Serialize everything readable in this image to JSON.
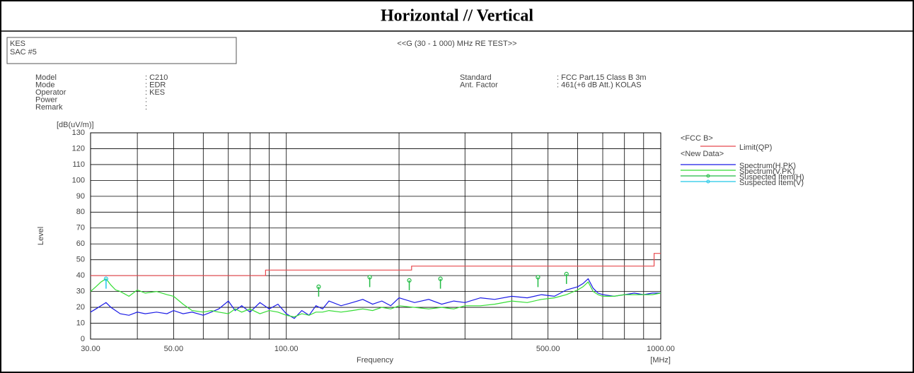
{
  "header": {
    "title": "Horizontal // Vertical"
  },
  "info": {
    "site": [
      "KES",
      "SAC #5"
    ],
    "test_title": "<<G (30 - 1 000) MHz RE TEST>>",
    "fields_left": [
      {
        "label": "Model",
        "value": ": C210"
      },
      {
        "label": "Mode",
        "value": ": EDR"
      },
      {
        "label": "Operator",
        "value": ": KES"
      },
      {
        "label": "Power",
        "value": ":"
      },
      {
        "label": "Remark",
        "value": ":"
      }
    ],
    "fields_right": [
      {
        "label": "Standard",
        "value": ": FCC Part.15 Class B 3m"
      },
      {
        "label": "Ant. Factor",
        "value": ": 461(+6 dB Att.) KOLAS"
      }
    ]
  },
  "chart_data": {
    "type": "line",
    "xlabel": "Frequency",
    "xunit": "[MHz]",
    "ylabel": "Level",
    "yunit": "[dB(uV/m)]",
    "xlog": true,
    "xlim": [
      30,
      1000
    ],
    "ylim": [
      0,
      130
    ],
    "xticks": [
      {
        "value": 30,
        "label": "30.00"
      },
      {
        "value": 50,
        "label": "50.00"
      },
      {
        "value": 100,
        "label": "100.00"
      },
      {
        "value": 500,
        "label": "500.00"
      },
      {
        "value": 1000,
        "label": "1000.00"
      }
    ],
    "xgrid": [
      30,
      40,
      50,
      60,
      70,
      80,
      90,
      100,
      200,
      300,
      400,
      500,
      600,
      700,
      800,
      900,
      1000
    ],
    "yticks": [
      0,
      10,
      20,
      30,
      40,
      50,
      60,
      70,
      80,
      90,
      100,
      110,
      120,
      130
    ],
    "grid": true,
    "legend_headings": [
      "<FCC B>",
      "<New Data>"
    ],
    "series": [
      {
        "name": "Limit(QP)",
        "color": "#e8494f",
        "x": [
          30,
          88,
          88,
          216,
          216,
          960,
          960,
          1000
        ],
        "values": [
          40,
          40,
          43.5,
          43.5,
          46,
          46,
          54,
          54
        ]
      },
      {
        "name": "Spectrum(H.PK)",
        "color": "#1a1ae6",
        "x": [
          30,
          31,
          32,
          33,
          34,
          35,
          36,
          38,
          40,
          42,
          45,
          48,
          50,
          53,
          56,
          60,
          63,
          66,
          70,
          73,
          76,
          80,
          85,
          90,
          95,
          100,
          105,
          110,
          115,
          120,
          125,
          130,
          140,
          150,
          160,
          170,
          180,
          190,
          200,
          220,
          240,
          260,
          280,
          300,
          330,
          360,
          400,
          440,
          480,
          520,
          560,
          600,
          620,
          640,
          660,
          680,
          700,
          750,
          800,
          850,
          900,
          950,
          1000
        ],
        "values": [
          17,
          19,
          21,
          23,
          20,
          18,
          16,
          15,
          17,
          16,
          17,
          16,
          18,
          16,
          17,
          15,
          17,
          19,
          24,
          18,
          21,
          17,
          23,
          19,
          22,
          16,
          13,
          18,
          15,
          21,
          19,
          24,
          21,
          23,
          25,
          22,
          24,
          21,
          26,
          23,
          25,
          22,
          24,
          23,
          26,
          25,
          27,
          26,
          28,
          27,
          31,
          33,
          35,
          38,
          32,
          29,
          28,
          27,
          28,
          29,
          28,
          29,
          29
        ]
      },
      {
        "name": "Spectrum(V.PK)",
        "color": "#33dd33",
        "x": [
          30,
          31,
          32,
          33,
          34,
          35,
          36,
          38,
          40,
          42,
          45,
          48,
          50,
          53,
          56,
          60,
          63,
          66,
          70,
          73,
          76,
          80,
          85,
          90,
          95,
          100,
          105,
          110,
          115,
          120,
          125,
          130,
          140,
          150,
          160,
          170,
          180,
          190,
          200,
          220,
          240,
          260,
          280,
          300,
          330,
          360,
          400,
          440,
          480,
          520,
          560,
          600,
          620,
          640,
          660,
          680,
          700,
          750,
          800,
          850,
          900,
          950,
          1000
        ],
        "values": [
          30,
          33,
          36,
          38,
          34,
          31,
          30,
          27,
          31,
          29,
          30,
          28,
          27,
          22,
          18,
          17,
          18,
          17,
          16,
          19,
          17,
          19,
          16,
          18,
          17,
          15,
          14,
          16,
          15,
          17,
          17,
          18,
          17,
          18,
          19,
          18,
          20,
          19,
          21,
          20,
          19,
          20,
          19,
          21,
          21,
          22,
          24,
          23,
          25,
          26,
          28,
          31,
          33,
          36,
          30,
          28,
          27,
          27,
          28,
          28,
          28,
          28,
          29
        ]
      },
      {
        "name": "Suspected Item(H)",
        "color": "#22bb44",
        "marker": true,
        "x": [
          122,
          167,
          213,
          258,
          470,
          560
        ],
        "values": [
          33,
          39,
          37,
          38,
          39,
          41
        ]
      },
      {
        "name": "Suspected Item(V)",
        "color": "#22c8e8",
        "marker": true,
        "x": [
          33
        ],
        "values": [
          38
        ]
      }
    ]
  }
}
